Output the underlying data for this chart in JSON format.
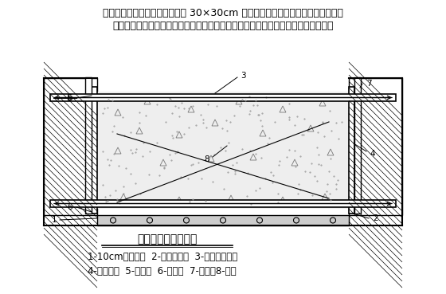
{
  "bg_color": "#ffffff",
  "text_color": "#000000",
  "title_text": "承台施工模板安装图",
  "header_line1": "承台模板采用定型钢模板，采用 30×30cm 的横、竖向槽钢或钢管及设于基坑边坡",
  "header_line2": "的支撑进行加固，立背杠底部及顶部采用对拉螺杆固定。承台模板安装如下图所示：",
  "legend_line1": "1-10cm厚垫层；  2-预埋铁脚；  3-承台混凝土；",
  "legend_line2": "4-钢模板；  5-撑杠；  6-木楔；  7-槽钢；8-拉杆",
  "font_size_header": 9.0,
  "font_size_title": 10,
  "font_size_legend": 8.5,
  "font_size_label": 7.5
}
